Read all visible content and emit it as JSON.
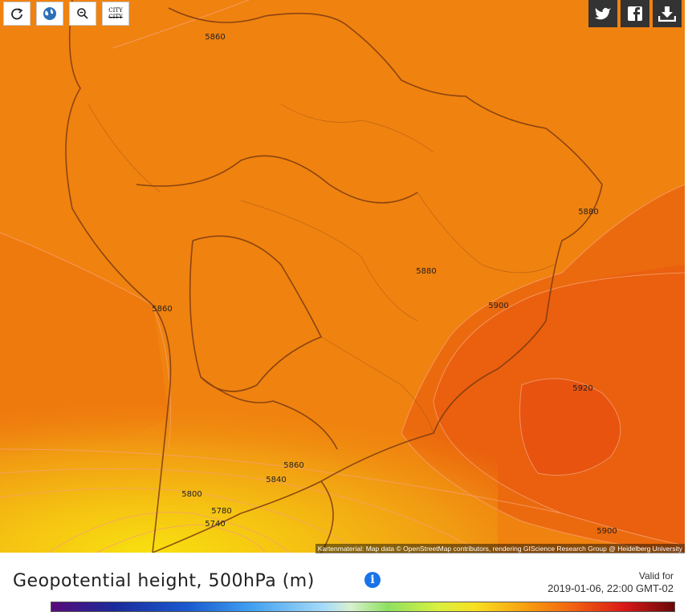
{
  "toolbar": {
    "city_label": "CITY"
  },
  "map": {
    "contour_labels": [
      5860,
      5880,
      5880,
      5900,
      5920,
      5860,
      5860,
      5840,
      5800,
      5780,
      5740,
      5900
    ],
    "attribution": "Kartenmaterial: Map data © OpenStreetMap contributors, rendering GIScience Research Group @ Heidelberg University"
  },
  "panel": {
    "title": "Geopotential height, 500hPa (m)",
    "valid_label": "Valid for",
    "valid_time": "2019-01-06, 22:00 GMT-02"
  }
}
